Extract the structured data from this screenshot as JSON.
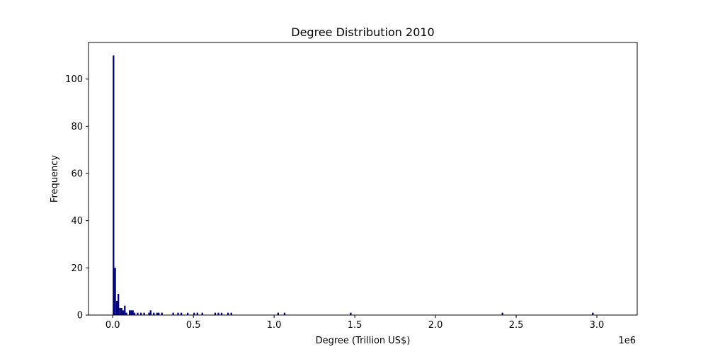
{
  "chart_data": {
    "type": "bar",
    "title": "Degree Distribution 2010",
    "xlabel": "Degree (Trillion US$)",
    "ylabel": "Frequency",
    "x_offset_label": "1e6",
    "xlim": [
      -150000,
      3250000
    ],
    "ylim": [
      0,
      115.5
    ],
    "xticks": [
      0,
      500000,
      1000000,
      1500000,
      2000000,
      2500000,
      3000000
    ],
    "xtick_labels": [
      "0.0",
      "0.5",
      "1.0",
      "1.5",
      "2.0",
      "2.5",
      "3.0"
    ],
    "yticks": [
      0,
      20,
      40,
      60,
      80,
      100
    ],
    "ytick_labels": [
      "0",
      "20",
      "40",
      "60",
      "80",
      "100"
    ],
    "bin_width": 10000,
    "bar_color": "#000080",
    "grid": false,
    "bins": [
      {
        "x": 0,
        "value": 110
      },
      {
        "x": 10000,
        "value": 20
      },
      {
        "x": 20000,
        "value": 6
      },
      {
        "x": 30000,
        "value": 9
      },
      {
        "x": 40000,
        "value": 3
      },
      {
        "x": 50000,
        "value": 3
      },
      {
        "x": 60000,
        "value": 2
      },
      {
        "x": 70000,
        "value": 4
      },
      {
        "x": 80000,
        "value": 1
      },
      {
        "x": 100000,
        "value": 2
      },
      {
        "x": 110000,
        "value": 2
      },
      {
        "x": 120000,
        "value": 2
      },
      {
        "x": 130000,
        "value": 1
      },
      {
        "x": 150000,
        "value": 1
      },
      {
        "x": 170000,
        "value": 1
      },
      {
        "x": 190000,
        "value": 1
      },
      {
        "x": 220000,
        "value": 1
      },
      {
        "x": 230000,
        "value": 2
      },
      {
        "x": 250000,
        "value": 1
      },
      {
        "x": 270000,
        "value": 1
      },
      {
        "x": 280000,
        "value": 1
      },
      {
        "x": 300000,
        "value": 1
      },
      {
        "x": 370000,
        "value": 1
      },
      {
        "x": 400000,
        "value": 1
      },
      {
        "x": 420000,
        "value": 1
      },
      {
        "x": 460000,
        "value": 1
      },
      {
        "x": 500000,
        "value": 1
      },
      {
        "x": 520000,
        "value": 1
      },
      {
        "x": 550000,
        "value": 1
      },
      {
        "x": 630000,
        "value": 1
      },
      {
        "x": 650000,
        "value": 1
      },
      {
        "x": 670000,
        "value": 1
      },
      {
        "x": 710000,
        "value": 1
      },
      {
        "x": 730000,
        "value": 1
      },
      {
        "x": 1020000,
        "value": 1
      },
      {
        "x": 1060000,
        "value": 1
      },
      {
        "x": 1470000,
        "value": 1
      },
      {
        "x": 2410000,
        "value": 1
      },
      {
        "x": 2970000,
        "value": 1
      }
    ]
  }
}
